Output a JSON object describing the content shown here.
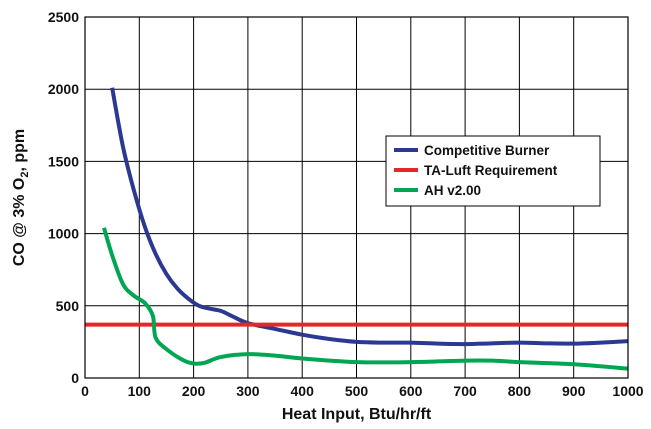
{
  "chart_data": {
    "type": "line",
    "title": "",
    "xlabel": "Heat Input, Btu/hr/ft",
    "ylabel_parts": {
      "pre": "CO @ 3% O",
      "sub": "2",
      "post": ", ppm"
    },
    "xlim": [
      0,
      1000
    ],
    "ylim": [
      0,
      2500
    ],
    "xticks": [
      0,
      100,
      200,
      300,
      400,
      500,
      600,
      700,
      800,
      900,
      1000
    ],
    "yticks": [
      0,
      500,
      1000,
      1500,
      2000,
      2500
    ],
    "grid": true,
    "legend_position": "right",
    "series": [
      {
        "name": "Competitive Burner",
        "color": "#2b3990",
        "x": [
          50,
          70,
          90,
          110,
          130,
          150,
          170,
          190,
          210,
          230,
          250,
          270,
          300,
          350,
          400,
          450,
          500,
          550,
          600,
          650,
          700,
          750,
          800,
          850,
          900,
          950,
          1000
        ],
        "y": [
          2010,
          1600,
          1300,
          1050,
          860,
          720,
          620,
          550,
          500,
          480,
          465,
          430,
          380,
          340,
          300,
          270,
          250,
          245,
          245,
          238,
          235,
          240,
          245,
          240,
          238,
          245,
          255
        ]
      },
      {
        "name": "TA-Luft Requirement",
        "color": "#e8262a",
        "x": [
          0,
          1000
        ],
        "y": [
          370,
          370
        ]
      },
      {
        "name": "AH v2.00",
        "color": "#00a651",
        "x": [
          35,
          50,
          70,
          90,
          110,
          125,
          130,
          150,
          180,
          200,
          220,
          250,
          300,
          350,
          400,
          500,
          600,
          700,
          750,
          800,
          900,
          1000
        ],
        "y": [
          1040,
          850,
          650,
          570,
          520,
          430,
          280,
          200,
          125,
          100,
          105,
          145,
          165,
          155,
          135,
          110,
          110,
          120,
          120,
          110,
          95,
          65
        ]
      }
    ]
  }
}
